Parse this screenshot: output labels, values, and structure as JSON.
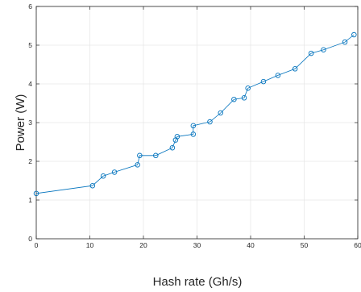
{
  "chart_data": {
    "type": "line",
    "title": "",
    "xlabel": "Hash rate (Gh/s)",
    "ylabel": "Power (W)",
    "xlim": [
      0,
      60
    ],
    "ylim": [
      0,
      6
    ],
    "xticks": [
      0,
      10,
      20,
      30,
      40,
      50,
      60
    ],
    "yticks": [
      0,
      1,
      2,
      3,
      4,
      5,
      6
    ],
    "grid": true,
    "marker": "circle-open",
    "line_color": "#0072BD",
    "series": [
      {
        "x": [
          0.0,
          10.5,
          12.5,
          14.6,
          18.9,
          19.3,
          22.3,
          25.4,
          26.0,
          26.3,
          29.3,
          29.3,
          32.4,
          34.4,
          36.9,
          38.8,
          39.5,
          42.4,
          45.1,
          48.3,
          51.3,
          53.6,
          57.6,
          59.3
        ],
        "y": [
          1.17,
          1.37,
          1.62,
          1.72,
          1.91,
          2.15,
          2.15,
          2.35,
          2.55,
          2.64,
          2.7,
          2.92,
          3.02,
          3.25,
          3.6,
          3.64,
          3.89,
          4.06,
          4.22,
          4.39,
          4.79,
          4.88,
          5.08,
          5.27
        ]
      }
    ]
  }
}
